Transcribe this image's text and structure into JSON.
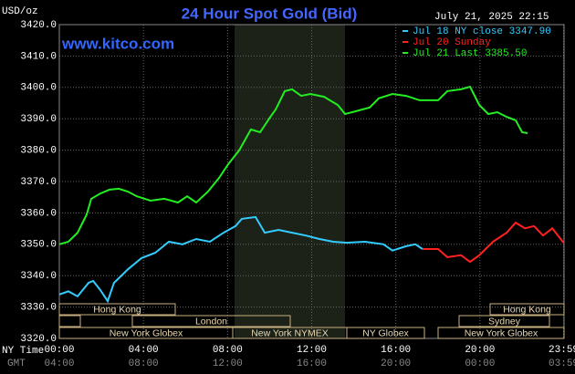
{
  "chart_data": {
    "type": "line",
    "title": "24 Hour Spot Gold (Bid)",
    "site": "www.kitco.com",
    "timestamp": "July 21, 2025 22:15",
    "ylabel": "USD/oz",
    "x_label": "NY Time",
    "x2_label": "GMT",
    "xlim": [
      0,
      24
    ],
    "ylim": [
      3320,
      3420
    ],
    "grid": true,
    "yticks": [
      {
        "value": 3420,
        "label": "3420.0"
      },
      {
        "value": 3410,
        "label": "3410.0"
      },
      {
        "value": 3400,
        "label": "3400.0"
      },
      {
        "value": 3390,
        "label": "3390.0"
      },
      {
        "value": 3380,
        "label": "3380.0"
      },
      {
        "value": 3370,
        "label": "3370.0"
      },
      {
        "value": 3360,
        "label": "3360.0"
      },
      {
        "value": 3350,
        "label": "3350.0"
      },
      {
        "value": 3340,
        "label": "3340.0"
      },
      {
        "value": 3330,
        "label": "3330.0"
      },
      {
        "value": 3320,
        "label": "3320.0"
      }
    ],
    "xticks": [
      {
        "value": 0,
        "label": "00:00"
      },
      {
        "value": 4,
        "label": "04:00"
      },
      {
        "value": 8,
        "label": "08:00"
      },
      {
        "value": 12,
        "label": "12:00"
      },
      {
        "value": 16,
        "label": "16:00"
      },
      {
        "value": 20,
        "label": "20:00"
      },
      {
        "value": 23.98,
        "label": "23:59"
      }
    ],
    "x2ticks": [
      {
        "value": 0,
        "label": "04:00"
      },
      {
        "value": 4,
        "label": "08:00"
      },
      {
        "value": 8,
        "label": "12:00"
      },
      {
        "value": 12,
        "label": "16:00"
      },
      {
        "value": 16,
        "label": "20:00"
      },
      {
        "value": 20,
        "label": "00:00"
      },
      {
        "value": 23.98,
        "label": "03:59"
      }
    ],
    "sessions": [
      "Hong Kong",
      "Hong Kong",
      "London",
      "Sydney",
      "New York Globex",
      "New York NYMEX",
      "NY Globex",
      "New York Globex"
    ],
    "series": [
      {
        "name": "Jul 18 NY close 3347.90",
        "color": "#33ccff",
        "x": [
          0,
          0.43,
          0.87,
          1.39,
          1.61,
          1.95,
          2.3,
          2.6,
          3.26,
          3.91,
          4.56,
          5.21,
          5.86,
          6.51,
          7.16,
          7.81,
          8.38,
          8.68,
          9.33,
          9.77,
          10.42,
          11.07,
          11.72,
          12.37,
          13.02,
          13.67,
          14.54,
          15.41,
          15.84,
          16.49,
          16.93,
          17.27
        ],
        "values": [
          3334,
          3335,
          3333.4,
          3337.7,
          3338.3,
          3335.4,
          3331.9,
          3337.7,
          3342,
          3345.6,
          3347.3,
          3350.8,
          3350,
          3351.7,
          3350.8,
          3353.7,
          3355.8,
          3358.1,
          3358.7,
          3353.7,
          3354.6,
          3353.7,
          3352.8,
          3351.7,
          3350.8,
          3350.5,
          3350.8,
          3350,
          3348,
          3349.4,
          3350,
          3348.5
        ]
      },
      {
        "name": "Jul 20 Sunday",
        "color": "#ff2020",
        "x": [
          17.27,
          18.01,
          18.45,
          19.1,
          19.53,
          19.97,
          20.62,
          21.27,
          21.7,
          22.14,
          22.57,
          23.0,
          23.44,
          23.98
        ],
        "values": [
          3348.5,
          3348.5,
          3345.9,
          3346.5,
          3344.4,
          3346.5,
          3350.8,
          3353.7,
          3356.9,
          3355.1,
          3355.8,
          3352.8,
          3355.1,
          3350.5
        ]
      },
      {
        "name": "Jul 21 Last 3385.50",
        "color": "#22ee22",
        "x": [
          0,
          0.43,
          0.87,
          1.3,
          1.52,
          1.95,
          2.39,
          2.82,
          3.26,
          3.69,
          4.34,
          4.99,
          5.64,
          6.08,
          6.51,
          7.07,
          7.6,
          8.03,
          8.55,
          9.11,
          9.55,
          9.98,
          10.29,
          10.72,
          11.07,
          11.5,
          11.94,
          12.59,
          13.24,
          13.59,
          14.11,
          14.76,
          15.19,
          15.84,
          16.49,
          17.14,
          18.01,
          18.45,
          19.1,
          19.53,
          19.97,
          20.4,
          20.83,
          21.27,
          21.7,
          22.01,
          22.27
        ],
        "values": [
          3350,
          3350.8,
          3353.7,
          3359.5,
          3364.5,
          3366.2,
          3367.4,
          3367.7,
          3366.8,
          3365.3,
          3363.9,
          3364.5,
          3363.3,
          3365.3,
          3363.3,
          3366.8,
          3371.2,
          3375.5,
          3379.9,
          3386.6,
          3385.7,
          3390.1,
          3393,
          3398.8,
          3399.4,
          3397.3,
          3397.9,
          3397,
          3394.4,
          3391.5,
          3392.4,
          3393.6,
          3396.5,
          3397.9,
          3397.3,
          3395.9,
          3395.9,
          3398.8,
          3399.4,
          3400.2,
          3394.4,
          3391.5,
          3392.1,
          3390.6,
          3389.5,
          3385.7,
          3385.4
        ]
      }
    ]
  }
}
